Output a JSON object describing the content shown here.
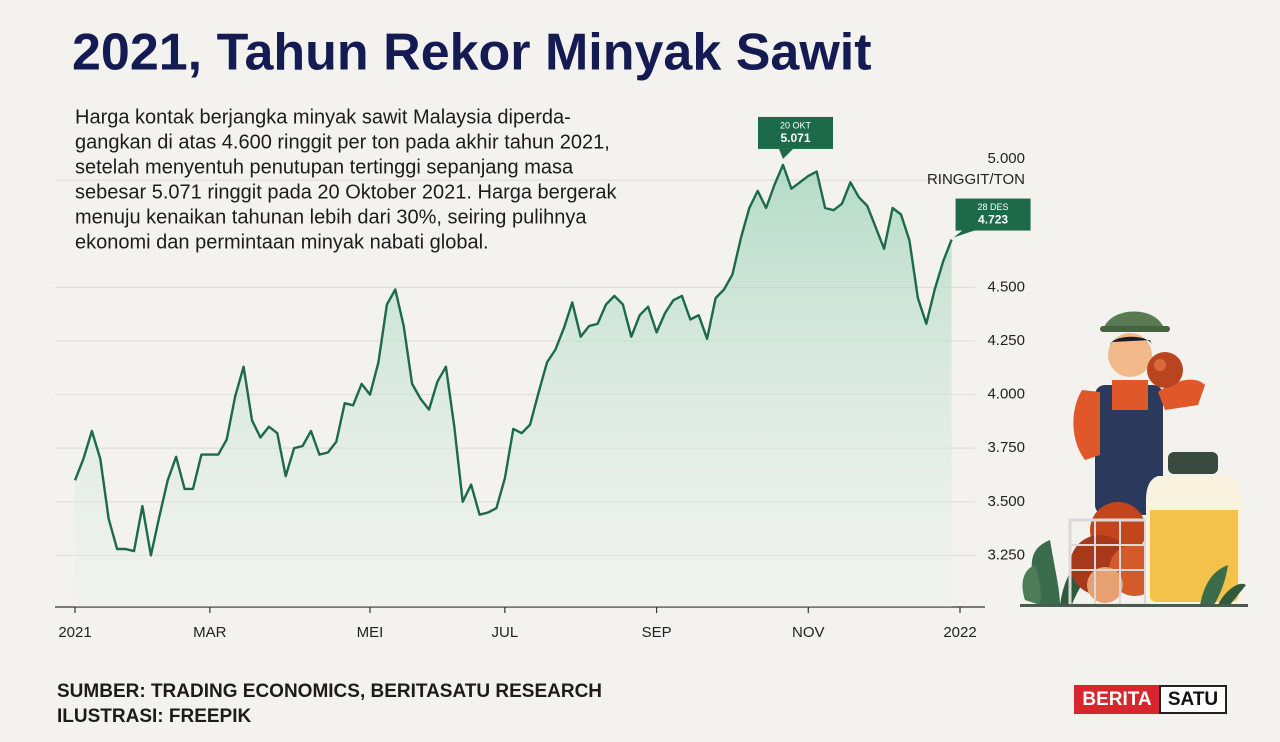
{
  "chart_data": {
    "type": "line",
    "title": "2021, Tahun Rekor Minyak Sawit",
    "description": [
      "Harga kontak berjangka minyak sawit Malaysia diperda-",
      "gangkan di atas 4.600 ringgit per ton pada akhir tahun 2021,",
      "setelah menyentuh penutupan tertinggi sepanjang masa",
      "sebesar 5.071 ringgit pada 20 Oktober 2021. Harga bergerak",
      "menuju kenaikan tahunan lebih dari 30%, seiring pulihnya",
      "ekonomi dan permintaan minyak nabati global."
    ],
    "y_unit": "RINGGIT/TON",
    "categories": [
      "2021",
      null,
      null,
      null,
      null,
      null,
      null,
      null,
      null,
      null,
      null,
      null,
      null,
      null,
      null,
      null,
      "MAR",
      null,
      null,
      null,
      null,
      null,
      null,
      null,
      null,
      null,
      null,
      null,
      null,
      null,
      null,
      null,
      null,
      null,
      null,
      "MEI",
      null,
      null,
      null,
      null,
      null,
      null,
      null,
      null,
      null,
      null,
      null,
      null,
      null,
      null,
      null,
      "JUL",
      null,
      null,
      null,
      null,
      null,
      null,
      null,
      null,
      null,
      null,
      null,
      null,
      null,
      null,
      null,
      null,
      null,
      "SEP",
      null,
      null,
      null,
      null,
      null,
      null,
      null,
      null,
      null,
      null,
      null,
      null,
      null,
      null,
      null,
      null,
      null,
      "NOV",
      null,
      null,
      null,
      null,
      null,
      null,
      null,
      null,
      null,
      null,
      null,
      null,
      null,
      null,
      null,
      null,
      null,
      "2022"
    ],
    "values": [
      3600,
      3700,
      3830,
      3700,
      3420,
      3280,
      3280,
      3270,
      3480,
      3250,
      3430,
      3600,
      3710,
      3560,
      3560,
      3720,
      3720,
      3720,
      3790,
      3990,
      4130,
      3880,
      3800,
      3850,
      3820,
      3620,
      3750,
      3760,
      3830,
      3720,
      3730,
      3780,
      3960,
      3950,
      4050,
      4000,
      4150,
      4420,
      4490,
      4320,
      4050,
      3980,
      3930,
      4060,
      4130,
      3850,
      3500,
      3580,
      3440,
      3450,
      3470,
      3610,
      3840,
      3820,
      3860,
      4010,
      4150,
      4210,
      4310,
      4430,
      4270,
      4320,
      4330,
      4420,
      4460,
      4420,
      4270,
      4370,
      4410,
      4290,
      4380,
      4440,
      4460,
      4350,
      4370,
      4260,
      4450,
      4490,
      4560,
      4730,
      4870,
      4950,
      4870,
      4980,
      5071,
      4960,
      4990,
      5020,
      5040,
      4870,
      4860,
      4890,
      4990,
      4920,
      4880,
      4780,
      4680,
      4870,
      4840,
      4720,
      4450,
      4330,
      4490,
      4620,
      4723,
      null
    ],
    "color": "#1d6a4b",
    "ylim": [
      3000,
      5150
    ],
    "yticks": [
      {
        "value": 3250,
        "label": "3.250"
      },
      {
        "value": 3500,
        "label": "3.500"
      },
      {
        "value": 3750,
        "label": "3.750"
      },
      {
        "value": 4000,
        "label": "4.000"
      },
      {
        "value": 4250,
        "label": "4.250"
      },
      {
        "value": 4500,
        "label": "4.500"
      },
      {
        "value": 5000,
        "label": "5.000"
      }
    ],
    "grid": true,
    "annotations": [
      {
        "date": "20 OKT",
        "label": "5.071",
        "value": 5071
      },
      {
        "date": "28 DES",
        "label": "4.723",
        "value": 4723
      }
    ],
    "source": [
      "SUMBER: TRADING ECONOMICS, BERITASATU RESEARCH",
      "ILUSTRASI: FREEPIK"
    ],
    "logo": [
      "BERITA",
      "SATU"
    ]
  }
}
